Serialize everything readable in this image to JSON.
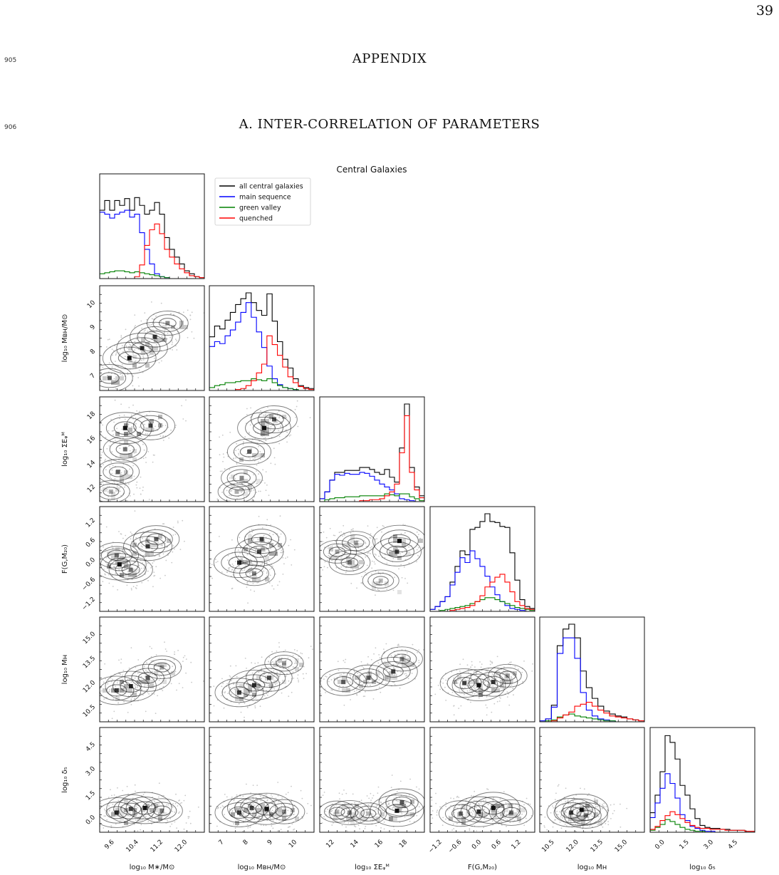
{
  "page_number": "39",
  "line_numbers": [
    "905",
    "906"
  ],
  "appendix_title": "APPENDIX",
  "section_title": "A.  INTER-CORRELATION OF PARAMETERS",
  "figure": {
    "title": "Central Galaxies",
    "legend": [
      {
        "label": "all central galaxies",
        "color": "#000000"
      },
      {
        "label": "main sequence",
        "color": "#0000ff"
      },
      {
        "label": "green valley",
        "color": "#008000"
      },
      {
        "label": "quenched",
        "color": "#ff0000"
      }
    ],
    "x_labels": [
      "log₁₀ M∗/M⊙",
      "log₁₀ Mʙʜ/M⊙",
      "log₁₀ ΣEᵩᴹ",
      "F(G,M₂₀)",
      "log₁₀ Mʜ",
      "log₁₀ δ₅"
    ],
    "y_labels": [
      "log₁₀ Mʙʜ/M⊙",
      "log₁₀ ΣEᵩᴹ",
      "F(G,M₂₀)",
      "log₁₀ Mʜ",
      "log₁₀ δ₅"
    ],
    "x_ticks": [
      [
        "9.6",
        "10.4",
        "11.2",
        "12.0"
      ],
      [
        "7",
        "8",
        "9",
        "10"
      ],
      [
        "12",
        "14",
        "16",
        "18"
      ],
      [
        "−1.2",
        "−0.6",
        "0.0",
        "0.6",
        "1.2"
      ],
      [
        "10.5",
        "12.0",
        "13.5",
        "15.0"
      ],
      [
        "0.0",
        "1.5",
        "3.0",
        "4.5"
      ]
    ],
    "y_ticks": [
      [
        "7",
        "8",
        "9",
        "10"
      ],
      [
        "12",
        "14",
        "16",
        "18"
      ],
      [
        "−1.2",
        "−0.6",
        "0.0",
        "0.6",
        "1.2"
      ],
      [
        "10.5",
        "12.0",
        "13.5",
        "15.0"
      ],
      [
        "0.0",
        "1.5",
        "3.0",
        "4.5"
      ]
    ]
  },
  "chart_data": {
    "type": "corner",
    "title": "Central Galaxies",
    "variables": [
      "log10 M*/Msun",
      "log10 MBH/Msun",
      "log10 ΣE_QM",
      "F(G,M20)",
      "log10 MH",
      "log10 δ5"
    ],
    "axis_ranges": [
      [
        8.9,
        12.6
      ],
      [
        6.0,
        10.2
      ],
      [
        10.6,
        19.0
      ],
      [
        -1.45,
        1.45
      ],
      [
        10.0,
        15.0
      ],
      [
        -0.6,
        5.0
      ]
    ],
    "series": [
      {
        "name": "all central galaxies",
        "color": "#000000",
        "histograms": [
          [
            0.7,
            0.8,
            0.7,
            0.8,
            0.75,
            0.82,
            0.7,
            0.83,
            0.75,
            0.66,
            0.7,
            0.78,
            0.66,
            0.42,
            0.3,
            0.22,
            0.15,
            0.08,
            0.05,
            0.02,
            0.01
          ],
          [
            0.55,
            0.66,
            0.63,
            0.72,
            0.8,
            0.88,
            0.94,
            1.0,
            0.9,
            0.82,
            0.77,
            0.99,
            0.71,
            0.5,
            0.32,
            0.23,
            0.12,
            0.05,
            0.03,
            0.02
          ],
          [
            0.03,
            0.1,
            0.22,
            0.3,
            0.3,
            0.32,
            0.32,
            0.32,
            0.35,
            0.35,
            0.33,
            0.3,
            0.28,
            0.33,
            0.25,
            0.2,
            0.55,
            1.0,
            0.35,
            0.15,
            0.06
          ],
          [
            0.02,
            0.05,
            0.1,
            0.15,
            0.3,
            0.46,
            0.62,
            0.58,
            0.84,
            0.86,
            0.92,
            1.0,
            0.92,
            0.91,
            0.87,
            0.86,
            0.6,
            0.32,
            0.12,
            0.05,
            0.03
          ],
          [
            0.01,
            0.03,
            0.17,
            0.78,
            0.95,
            1.0,
            0.86,
            0.52,
            0.35,
            0.24,
            0.16,
            0.11,
            0.08,
            0.06,
            0.05,
            0.03,
            0.02,
            0.01
          ],
          [
            0.2,
            0.38,
            0.62,
            0.99,
            0.92,
            0.75,
            0.48,
            0.38,
            0.24,
            0.14,
            0.07,
            0.05,
            0.04,
            0.04,
            0.03,
            0.03,
            0.02,
            0.02,
            0.02,
            0.01,
            0.01
          ]
        ]
      },
      {
        "name": "main sequence",
        "color": "#0000ff",
        "histograms": [
          [
            0.68,
            0.66,
            0.62,
            0.66,
            0.68,
            0.7,
            0.63,
            0.66,
            0.47,
            0.3,
            0.15,
            0.05,
            0.02,
            0.01,
            0.0,
            0.0,
            0.0,
            0.0,
            0.0,
            0.0,
            0.0
          ],
          [
            0.45,
            0.5,
            0.48,
            0.56,
            0.62,
            0.7,
            0.8,
            0.9,
            0.75,
            0.6,
            0.44,
            0.25,
            0.12,
            0.06,
            0.03,
            0.02,
            0.01,
            0.0,
            0.0,
            0.0
          ],
          [
            0.03,
            0.1,
            0.22,
            0.28,
            0.27,
            0.29,
            0.28,
            0.28,
            0.3,
            0.29,
            0.26,
            0.22,
            0.18,
            0.15,
            0.12,
            0.08,
            0.03,
            0.02,
            0.01,
            0.0,
            0.0
          ],
          [
            0.02,
            0.05,
            0.1,
            0.15,
            0.27,
            0.4,
            0.55,
            0.5,
            0.62,
            0.54,
            0.46,
            0.36,
            0.25,
            0.17,
            0.1,
            0.06,
            0.03,
            0.02,
            0.01,
            0.0,
            0.0
          ],
          [
            0.01,
            0.03,
            0.15,
            0.7,
            0.86,
            0.86,
            0.65,
            0.3,
            0.12,
            0.06,
            0.03,
            0.02,
            0.01,
            0.0,
            0.0,
            0.0,
            0.0,
            0.0
          ],
          [
            0.15,
            0.3,
            0.45,
            0.6,
            0.5,
            0.35,
            0.18,
            0.12,
            0.06,
            0.04,
            0.02,
            0.01,
            0.01,
            0.0,
            0.0,
            0.0,
            0.0,
            0.0,
            0.0,
            0.0,
            0.0
          ]
        ]
      },
      {
        "name": "green valley",
        "color": "#008000",
        "histograms": [
          [
            0.05,
            0.06,
            0.07,
            0.08,
            0.08,
            0.07,
            0.06,
            0.07,
            0.06,
            0.05,
            0.04,
            0.03,
            0.02,
            0.01,
            0.0,
            0.0,
            0.0,
            0.0,
            0.0,
            0.0,
            0.0
          ],
          [
            0.03,
            0.05,
            0.06,
            0.08,
            0.08,
            0.09,
            0.1,
            0.1,
            0.12,
            0.11,
            0.1,
            0.12,
            0.08,
            0.05,
            0.03,
            0.02,
            0.01,
            0.0,
            0.0,
            0.0
          ],
          [
            0.0,
            0.02,
            0.03,
            0.04,
            0.04,
            0.05,
            0.05,
            0.05,
            0.06,
            0.06,
            0.06,
            0.06,
            0.06,
            0.08,
            0.07,
            0.06,
            0.08,
            0.08,
            0.05,
            0.03,
            0.01
          ],
          [
            0.0,
            0.0,
            0.01,
            0.02,
            0.03,
            0.04,
            0.05,
            0.06,
            0.08,
            0.1,
            0.12,
            0.14,
            0.14,
            0.12,
            0.1,
            0.08,
            0.06,
            0.04,
            0.03,
            0.02,
            0.01
          ],
          [
            0.0,
            0.01,
            0.02,
            0.05,
            0.07,
            0.08,
            0.06,
            0.05,
            0.04,
            0.03,
            0.02,
            0.01,
            0.01,
            0.0,
            0.0,
            0.0,
            0.0,
            0.0
          ],
          [
            0.02,
            0.05,
            0.08,
            0.13,
            0.11,
            0.08,
            0.05,
            0.03,
            0.02,
            0.01,
            0.01,
            0.0,
            0.0,
            0.0,
            0.0,
            0.0,
            0.0,
            0.0,
            0.0,
            0.0,
            0.0
          ]
        ]
      },
      {
        "name": "quenched",
        "color": "#ff0000",
        "histograms": [
          [
            0.0,
            0.0,
            0.0,
            0.0,
            0.0,
            0.0,
            0.0,
            0.02,
            0.14,
            0.34,
            0.5,
            0.56,
            0.46,
            0.3,
            0.22,
            0.15,
            0.1,
            0.06,
            0.03,
            0.02,
            0.01
          ],
          [
            0.0,
            0.0,
            0.0,
            0.0,
            0.0,
            0.01,
            0.02,
            0.05,
            0.1,
            0.18,
            0.27,
            0.56,
            0.47,
            0.36,
            0.24,
            0.14,
            0.08,
            0.04,
            0.02,
            0.01
          ],
          [
            0.0,
            0.0,
            0.0,
            0.0,
            0.0,
            0.0,
            0.0,
            0.0,
            0.01,
            0.01,
            0.02,
            0.02,
            0.03,
            0.06,
            0.1,
            0.18,
            0.5,
            0.88,
            0.3,
            0.12,
            0.04
          ],
          [
            0.0,
            0.0,
            0.0,
            0.0,
            0.01,
            0.02,
            0.03,
            0.04,
            0.06,
            0.1,
            0.16,
            0.25,
            0.3,
            0.35,
            0.38,
            0.3,
            0.2,
            0.1,
            0.06,
            0.03,
            0.02
          ],
          [
            0.0,
            0.0,
            0.01,
            0.04,
            0.07,
            0.1,
            0.16,
            0.18,
            0.2,
            0.16,
            0.12,
            0.09,
            0.06,
            0.05,
            0.04,
            0.03,
            0.02,
            0.01
          ],
          [
            0.03,
            0.06,
            0.12,
            0.17,
            0.21,
            0.18,
            0.14,
            0.1,
            0.07,
            0.05,
            0.04,
            0.04,
            0.03,
            0.03,
            0.03,
            0.02,
            0.02,
            0.02,
            0.02,
            0.01,
            0.01
          ]
        ]
      }
    ],
    "density_peaks": [
      [
        [
          [
            9.25,
            6.5,
            0.7
          ],
          [
            9.95,
            7.3,
            1.0
          ],
          [
            10.4,
            7.7,
            0.9
          ],
          [
            10.85,
            8.15,
            0.85
          ],
          [
            11.3,
            8.7,
            0.5
          ]
        ]
      ],
      [
        [
          [
            9.8,
            16.5,
            1.0
          ],
          [
            10.7,
            16.7,
            0.8
          ],
          [
            9.8,
            14.8,
            0.6
          ],
          [
            9.55,
            13.0,
            0.55
          ],
          [
            9.3,
            11.4,
            0.35
          ]
        ],
        [
          [
            8.2,
            16.5,
            1.0
          ],
          [
            8.6,
            17.2,
            0.7
          ],
          [
            7.6,
            14.6,
            0.6
          ],
          [
            7.3,
            12.5,
            0.5
          ],
          [
            7.1,
            11.4,
            0.35
          ]
        ]
      ],
      [
        [
          [
            9.6,
            -0.15,
            1.0
          ],
          [
            10.0,
            -0.3,
            0.6
          ],
          [
            10.6,
            0.35,
            0.8
          ],
          [
            10.9,
            0.55,
            0.7
          ],
          [
            9.5,
            0.1,
            0.6
          ]
        ],
        [
          [
            7.2,
            -0.1,
            0.9
          ],
          [
            8.0,
            0.2,
            0.8
          ],
          [
            8.1,
            0.55,
            0.8
          ],
          [
            7.8,
            -0.4,
            0.5
          ]
        ],
        [
          [
            13.0,
            -0.1,
            0.5
          ],
          [
            12.0,
            0.2,
            0.4
          ],
          [
            13.5,
            0.45,
            0.4
          ],
          [
            17.0,
            0.5,
            1.0
          ],
          [
            16.8,
            0.2,
            0.8
          ],
          [
            15.5,
            -0.6,
            0.3
          ]
        ]
      ],
      [
        [
          [
            9.5,
            11.5,
            0.8
          ],
          [
            10.0,
            11.7,
            0.9
          ],
          [
            10.6,
            12.1,
            0.7
          ],
          [
            11.1,
            12.6,
            0.4
          ]
        ],
        [
          [
            7.2,
            11.4,
            0.8
          ],
          [
            7.8,
            11.75,
            0.9
          ],
          [
            8.4,
            12.1,
            0.7
          ],
          [
            9.0,
            12.8,
            0.4
          ]
        ],
        [
          [
            12.5,
            11.9,
            0.7
          ],
          [
            14.5,
            12.1,
            0.6
          ],
          [
            16.5,
            12.4,
            0.8
          ],
          [
            17.2,
            13.0,
            0.5
          ]
        ],
        [
          [
            -0.5,
            11.85,
            0.8
          ],
          [
            -0.1,
            11.75,
            1.0
          ],
          [
            0.3,
            11.9,
            0.8
          ],
          [
            0.7,
            12.2,
            0.4
          ]
        ]
      ],
      [
        [
          [
            9.5,
            0.45,
            0.9
          ],
          [
            10.0,
            0.65,
            0.8
          ],
          [
            10.5,
            0.7,
            1.0
          ],
          [
            11.1,
            0.55,
            0.5
          ]
        ],
        [
          [
            7.2,
            0.45,
            0.8
          ],
          [
            7.7,
            0.7,
            0.8
          ],
          [
            8.3,
            0.65,
            1.0
          ],
          [
            9.0,
            0.5,
            0.5
          ]
        ],
        [
          [
            13.0,
            0.45,
            0.5
          ],
          [
            12.0,
            0.5,
            0.3
          ],
          [
            14.5,
            0.4,
            0.3
          ],
          [
            16.8,
            0.55,
            1.0
          ],
          [
            17.2,
            1.0,
            0.7
          ]
        ],
        [
          [
            -0.6,
            0.4,
            0.6
          ],
          [
            -0.1,
            0.5,
            0.9
          ],
          [
            0.3,
            0.7,
            1.0
          ],
          [
            0.8,
            0.45,
            0.6
          ]
        ],
        [
          [
            11.5,
            0.45,
            0.8
          ],
          [
            12.0,
            0.6,
            1.0
          ],
          [
            12.2,
            0.3,
            0.6
          ]
        ]
      ]
    ],
    "grid": false,
    "legend_position": "top-right of the first diagonal panel"
  }
}
